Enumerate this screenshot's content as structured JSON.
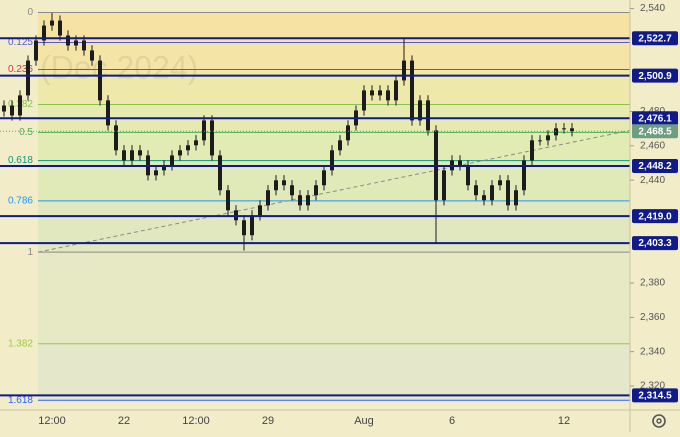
{
  "chart_data": {
    "type": "candlestick",
    "watermark": "(Dec 2024)",
    "categories": [
      null,
      null,
      null,
      null,
      null,
      null,
      "12:00",
      null,
      null,
      null,
      null,
      null,
      null,
      null,
      null,
      "22",
      null,
      null,
      null,
      null,
      null,
      null,
      null,
      null,
      "12:00",
      null,
      null,
      null,
      null,
      null,
      null,
      null,
      null,
      "29",
      null,
      null,
      null,
      null,
      null,
      null,
      null,
      null,
      null,
      null,
      null,
      "Aug",
      null,
      null,
      null,
      null,
      null,
      null,
      null,
      null,
      null,
      null,
      "6",
      null,
      null,
      null,
      null,
      null,
      null,
      null,
      null,
      null,
      null,
      null,
      null,
      null,
      "12",
      null
    ],
    "open": [
      2480,
      2483.5,
      2477.7,
      2489.4,
      2509.7,
      2521.4,
      2530.1,
      2533.0,
      2524.3,
      2518.5,
      2521.4,
      2515.6,
      2509.7,
      2486.5,
      2471.9,
      2457.4,
      2451.5,
      2457.4,
      2454.4,
      2442.8,
      2445.7,
      2448.6,
      2454.4,
      2457.4,
      2460.3,
      2463.2,
      2474.8,
      2454.4,
      2434.1,
      2422.4,
      2416.6,
      2407.9,
      2419.5,
      2425.3,
      2434.1,
      2439.9,
      2437.0,
      2431.2,
      2425.3,
      2431.2,
      2437.0,
      2445.7,
      2457.4,
      2463.2,
      2471.9,
      2480.6,
      2492.3,
      2489.4,
      2492.3,
      2486.5,
      2498.1,
      2509.7,
      2474.8,
      2486.5,
      2469.0,
      2428.3,
      2445.7,
      2451.5,
      2448.6,
      2437.0,
      2431.2,
      2428.3,
      2437.0,
      2439.9,
      2425.3,
      2434.1,
      2451.5,
      2463.2,
      2463.2,
      2466.1,
      2470.2,
      2470.2
    ],
    "high": [
      2486.5,
      2486.5,
      2492.4,
      2512.7,
      2524.4,
      2533.1,
      2537.5,
      2536,
      2527.3,
      2524.4,
      2524.4,
      2518.6,
      2512.7,
      2489.5,
      2474.9,
      2460.4,
      2460.4,
      2460.4,
      2457.4,
      2448.7,
      2451.6,
      2457.4,
      2460.4,
      2463.3,
      2466.2,
      2477.8,
      2477.8,
      2457.4,
      2437.1,
      2425.4,
      2419.6,
      2422.5,
      2428.3,
      2437.1,
      2442.9,
      2442.9,
      2440,
      2434.2,
      2434.2,
      2440,
      2448.7,
      2460.4,
      2466.2,
      2474.9,
      2483.6,
      2495.3,
      2495.3,
      2495.3,
      2495.3,
      2501.1,
      2523,
      2512.7,
      2489.5,
      2489.5,
      2472,
      2448.7,
      2454.5,
      2454.5,
      2451.6,
      2440,
      2434.2,
      2440,
      2442.9,
      2442.9,
      2437.1,
      2454.5,
      2466.2,
      2466.2,
      2469.1,
      2473.2,
      2473.2,
      2473.2
    ],
    "low": [
      2477,
      2474.7,
      2474.7,
      2486.4,
      2506.7,
      2518.4,
      2527.1,
      2521.3,
      2515.5,
      2515.5,
      2512.6,
      2506.7,
      2483.5,
      2468.9,
      2454.4,
      2448.5,
      2448.5,
      2451.4,
      2439.8,
      2439.8,
      2442.7,
      2445.6,
      2451.4,
      2454.4,
      2457.3,
      2460.2,
      2451.4,
      2431.1,
      2419.4,
      2413.6,
      2399,
      2404.9,
      2416.5,
      2422.3,
      2431.1,
      2434,
      2428.2,
      2422.3,
      2422.3,
      2428.2,
      2434,
      2442.7,
      2454.4,
      2460.2,
      2468.9,
      2477.6,
      2486.4,
      2486.4,
      2483.5,
      2483.5,
      2495.1,
      2471.8,
      2471.8,
      2466,
      2403.5,
      2425.3,
      2442.7,
      2445.6,
      2434,
      2428.2,
      2425.3,
      2425.3,
      2434,
      2422.3,
      2422.3,
      2431.1,
      2448.5,
      2460.2,
      2460.2,
      2463.1,
      2467.2,
      2465.5
    ],
    "close": [
      2483.5,
      2477.7,
      2489.4,
      2509.7,
      2521.4,
      2530.1,
      2533.0,
      2524.3,
      2518.5,
      2521.4,
      2515.6,
      2509.7,
      2486.5,
      2471.9,
      2457.4,
      2451.5,
      2457.4,
      2454.4,
      2442.8,
      2445.7,
      2448.6,
      2454.4,
      2457.4,
      2460.3,
      2463.2,
      2474.8,
      2454.4,
      2434.1,
      2422.4,
      2416.6,
      2407.9,
      2419.5,
      2425.3,
      2434.1,
      2439.9,
      2437.0,
      2431.2,
      2425.3,
      2431.2,
      2437.0,
      2445.7,
      2457.4,
      2463.2,
      2471.9,
      2480.6,
      2492.3,
      2489.4,
      2492.3,
      2486.5,
      2498.1,
      2509.7,
      2474.8,
      2486.5,
      2469.0,
      2428.3,
      2445.7,
      2451.5,
      2448.6,
      2437.0,
      2431.2,
      2428.3,
      2437.0,
      2439.9,
      2425.3,
      2434.1,
      2451.5,
      2463.2,
      2463.2,
      2466.1,
      2470.2,
      2470.2,
      2468.5
    ],
    "color": "#1c1c1c",
    "ylim": [
      2306,
      2545
    ],
    "yticks": [
      {
        "value": 2540,
        "label": "2,540"
      },
      {
        "value": 2480,
        "label": "2,480"
      },
      {
        "value": 2460,
        "label": "2,460"
      },
      {
        "value": 2440,
        "label": "2,440"
      },
      {
        "value": 2380,
        "label": "2,380"
      },
      {
        "value": 2360,
        "label": "2,360"
      },
      {
        "value": 2340,
        "label": "2,340"
      },
      {
        "value": 2320,
        "label": "2,320"
      }
    ],
    "levels": [
      {
        "value": 2522.7,
        "label": "2,522.7"
      },
      {
        "value": 2500.9,
        "label": "2,500.9"
      },
      {
        "value": 2476.1,
        "label": "2,476.1"
      },
      {
        "value": 2448.2,
        "label": "2,448.2"
      },
      {
        "value": 2419.0,
        "label": "2,419.0"
      },
      {
        "value": 2403.3,
        "label": "2,403.3"
      },
      {
        "value": 2314.5,
        "label": "2,314.5"
      }
    ],
    "level_color": "#101a8a",
    "last_price": {
      "value": 2468.5,
      "label": "2,468.5"
    },
    "last_color": "#6e9e80",
    "fib_levels": [
      {
        "value": 2537.7,
        "label": "0",
        "color": "#8a8a8a",
        "fill": "#f6e2a2"
      },
      {
        "value": 2520.2,
        "label": "0.125",
        "color": "#5a5ad0",
        "fill": "#f4e4a6"
      },
      {
        "value": 2504.5,
        "label": "0.236",
        "color": "#d23a3a",
        "fill": "#eee8aa"
      },
      {
        "value": 2484.1,
        "label": "0.382",
        "color": "#8bc34a",
        "fill": "#e6eab0"
      },
      {
        "value": 2467.8,
        "label": "0.5",
        "color": "#4caf50",
        "fill": "#e2ebb3"
      },
      {
        "value": 2451.4,
        "label": "0.618",
        "color": "#089981",
        "fill": "#e0eab8"
      },
      {
        "value": 2427.9,
        "label": "0.786",
        "color": "#2196f3",
        "fill": "#e1e8bf"
      },
      {
        "value": 2398.0,
        "label": "1",
        "color": "#8a8a8a",
        "fill": "#e7e9c4"
      },
      {
        "value": 2344.6,
        "label": "1.382",
        "color": "#9acd32",
        "fill": "#e4e7c9"
      },
      {
        "value": 2311.7,
        "label": "1.618",
        "color": "#2962ff"
      }
    ],
    "trend_line": [
      2398,
      2469
    ]
  }
}
